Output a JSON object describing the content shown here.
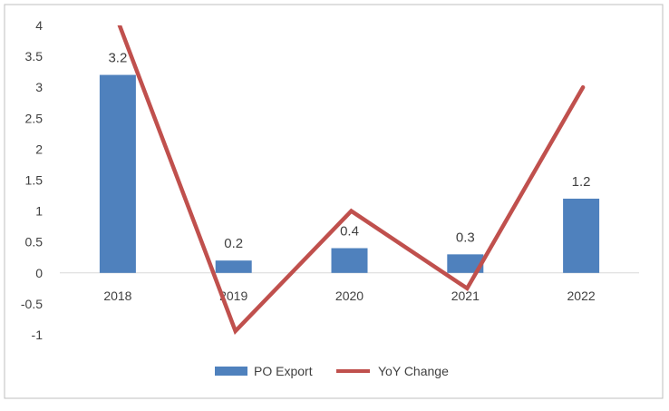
{
  "chart_data": {
    "type": "bar",
    "title": "",
    "xlabel": "",
    "ylabel": "",
    "categories": [
      "2018",
      "2019",
      "2020",
      "2021",
      "2022"
    ],
    "ylim": [
      -1,
      4
    ],
    "y_ticks": [
      "4",
      "3.5",
      "3",
      "2.5",
      "2",
      "1.5",
      "1",
      "0.5",
      "0",
      "-0.5",
      "-1"
    ],
    "series": [
      {
        "name": "PO Export",
        "kind": "bar",
        "values": [
          3.2,
          0.2,
          0.4,
          0.3,
          1.2
        ],
        "labels": [
          "3.2",
          "0.2",
          "0.4",
          "0.3",
          "1.2"
        ],
        "color": "#4F81BD"
      },
      {
        "name": "YoY Change",
        "kind": "line",
        "values": [
          4.0,
          -0.94,
          1.0,
          -0.25,
          3.0
        ],
        "color": "#C0504D"
      }
    ],
    "legend": "bottom-center",
    "grid": false
  }
}
